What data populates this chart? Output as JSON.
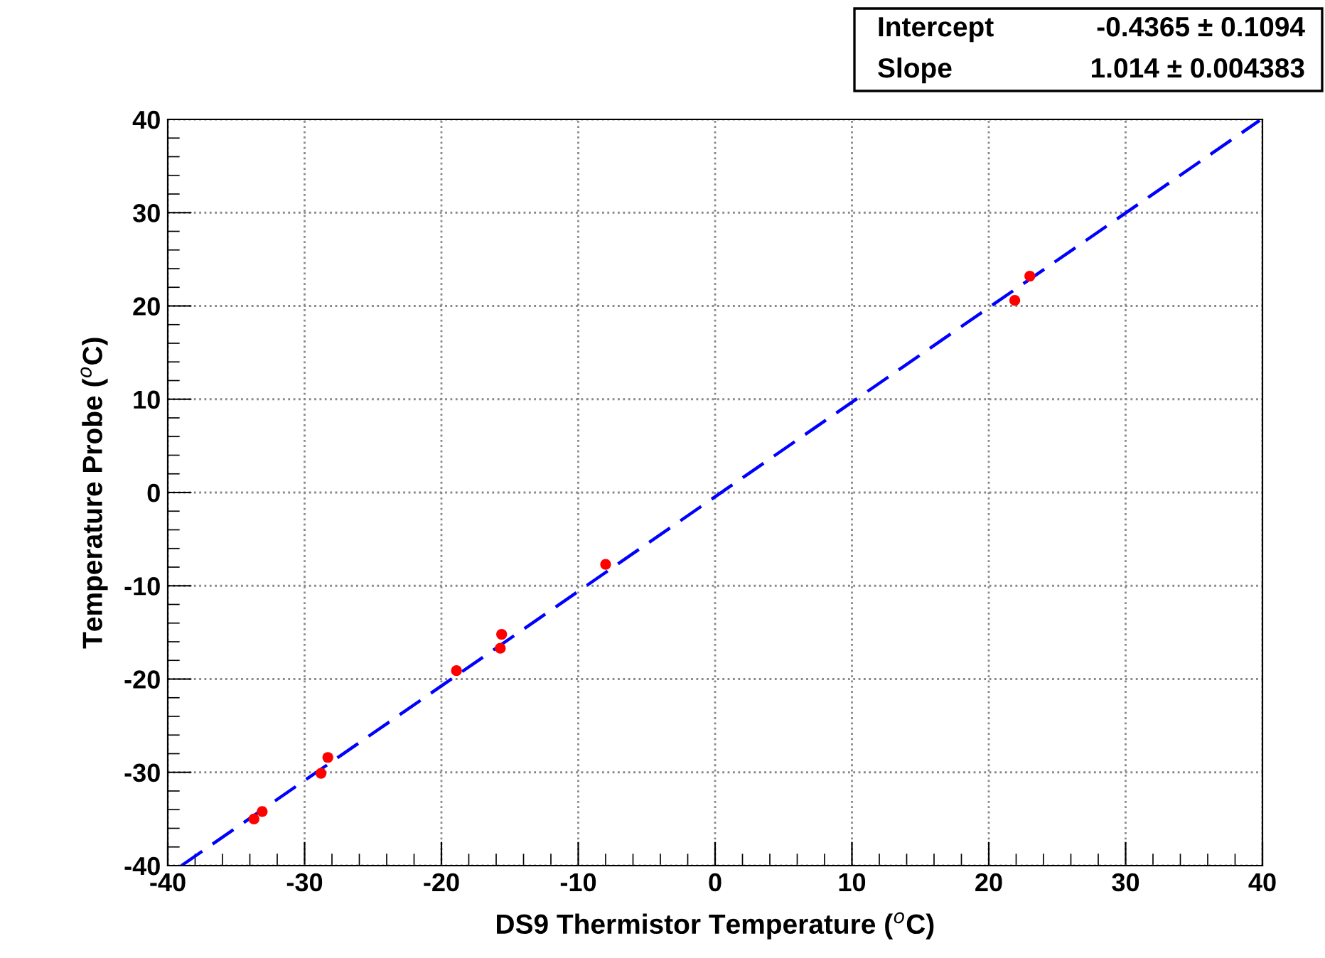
{
  "chart_data": {
    "type": "scatter",
    "xlabel": "DS9 Thermistor Temperature ($^{o}$C)",
    "ylabel": "Temperature Probe ($^{o}$C)",
    "xlim": [
      -40,
      40
    ],
    "ylim": [
      -40,
      40
    ],
    "xticks": [
      -40,
      -30,
      -20,
      -10,
      0,
      10,
      20,
      30,
      40
    ],
    "yticks": [
      -40,
      -30,
      -20,
      -10,
      0,
      10,
      20,
      30,
      40
    ],
    "grid": true,
    "marker": "circle",
    "annotations": [
      "Intercept",
      "-0.4365 ± 0.1094",
      "Slope",
      "1.014 ± 0.004383"
    ],
    "series": [
      {
        "color": "#ff0000",
        "x": [
          -33.7,
          -33.1,
          -28.8,
          -28.3,
          -18.9,
          -15.7,
          -15.6,
          -8.0,
          21.9,
          23.0
        ],
        "values": [
          -35.0,
          -34.2,
          -30.1,
          -28.4,
          -19.1,
          -16.7,
          -15.2,
          -7.7,
          20.6,
          23.2
        ]
      },
      {
        "type": "line",
        "color": "#0000ff",
        "line_style": "dashed",
        "marker": "none",
        "x": [
          -39,
          39.8
        ],
        "values": [
          -40.0,
          39.9
        ]
      }
    ]
  }
}
